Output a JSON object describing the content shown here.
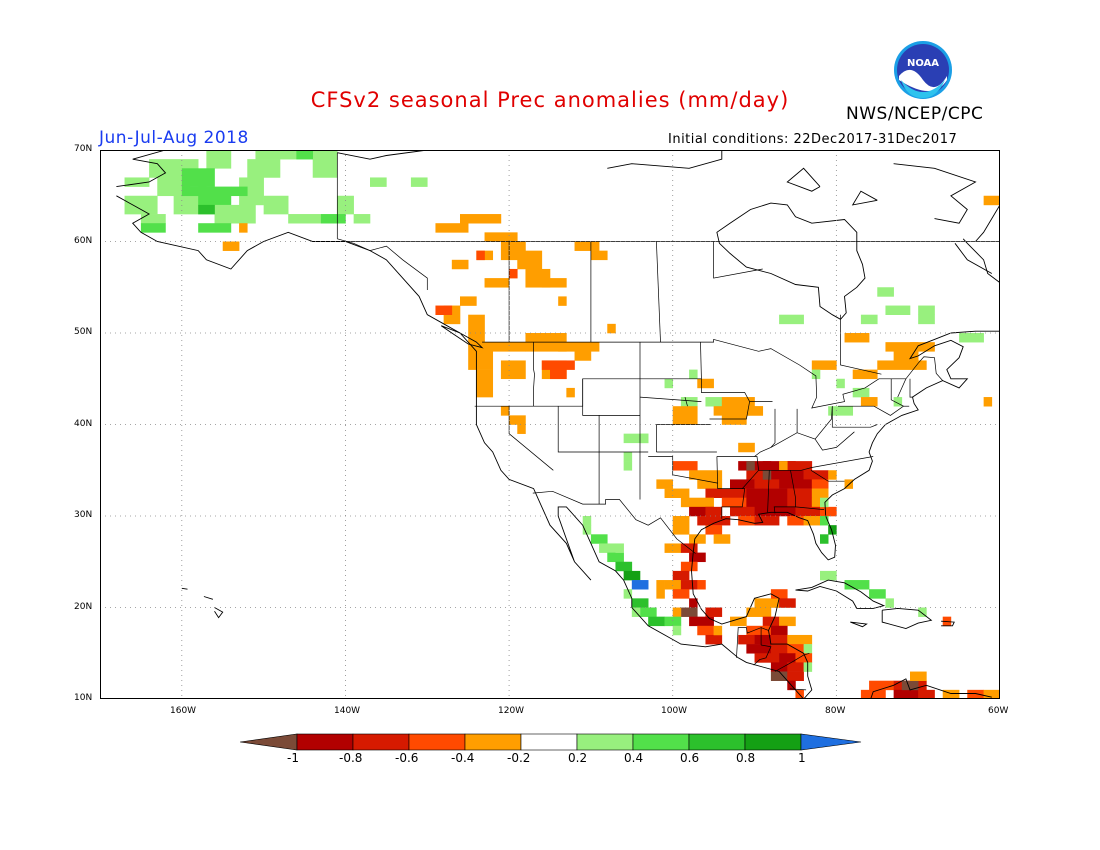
{
  "title": "CFSv2 seasonal Prec anomalies (mm/day)",
  "agency": "NWS/NCEP/CPC",
  "logo_text": "NOAA",
  "season": "Jun-Jul-Aug 2018",
  "initial_conditions": "Initial conditions: 22Dec2017-31Dec2017",
  "lat_labels": [
    "70N",
    "60N",
    "50N",
    "40N",
    "30N",
    "20N",
    "10N"
  ],
  "lon_labels": [
    "160W",
    "140W",
    "120W",
    "100W",
    "80W",
    "60W"
  ],
  "colorbar": {
    "labels": [
      "-1",
      "-0.8",
      "-0.6",
      "-0.4",
      "-0.2",
      "0.2",
      "0.4",
      "0.6",
      "0.8",
      "1"
    ],
    "colors": {
      "below_-1": "#7b4a37",
      "-1_to_-0.8": "#b20000",
      "-0.8_to_-0.6": "#d61a00",
      "-0.6_to_-0.4": "#ff4a00",
      "-0.4_to_-0.2": "#ff9e00",
      "-0.2_to_0.2": "#ffffff",
      "0.2_to_0.4": "#98f07e",
      "0.4_to_0.6": "#52e04a",
      "0.6_to_0.8": "#2cc02c",
      "0.8_to_1": "#14a014",
      "above_1": "#1f6fe0"
    }
  },
  "map_extent": {
    "lon_min": -170,
    "lon_max": -60,
    "lat_min": 10,
    "lat_max": 70
  }
}
